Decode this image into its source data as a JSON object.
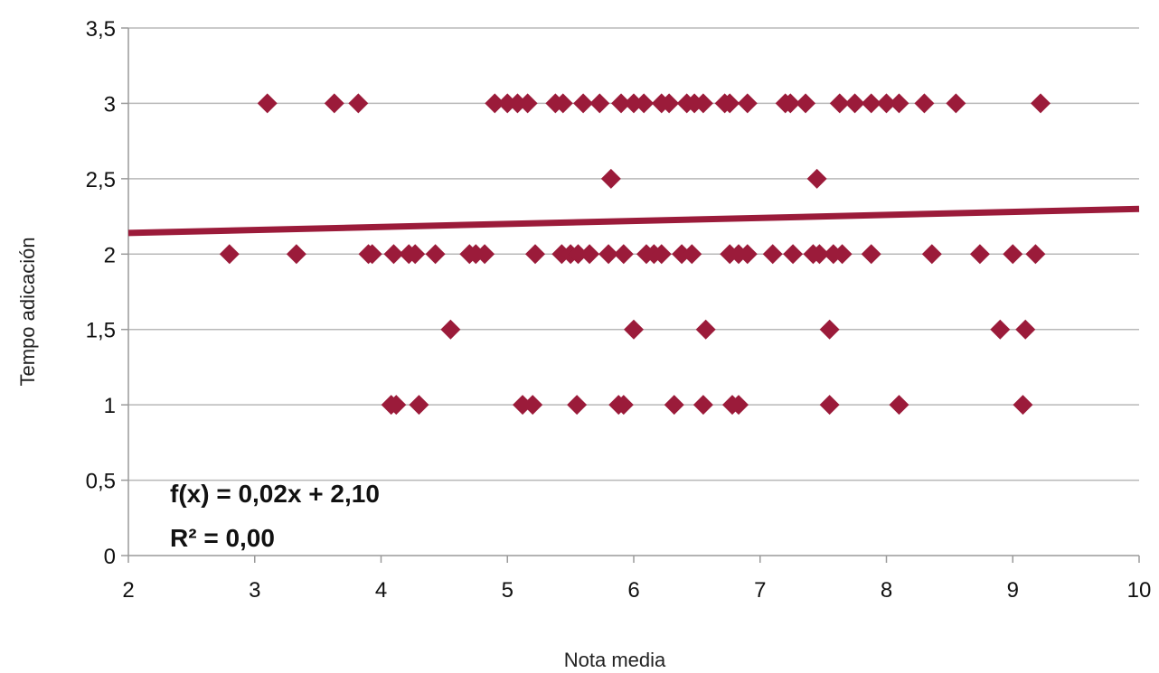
{
  "chart_data": {
    "type": "scatter",
    "xlabel": "Nota media",
    "ylabel": "Tempo adicación",
    "xlim": [
      2,
      10
    ],
    "ylim": [
      0,
      3.5
    ],
    "x_ticks": [
      "2",
      "3",
      "4",
      "5",
      "6",
      "7",
      "8",
      "9",
      "10"
    ],
    "y_ticks": [
      "0",
      "0,5",
      "1",
      "1,5",
      "2",
      "2,5",
      "3",
      "3,5"
    ],
    "grid": "horizontal",
    "marker": "diamond",
    "color": "#9b1b3a",
    "points": [
      {
        "x": 3.1,
        "y": 3
      },
      {
        "x": 3.63,
        "y": 3
      },
      {
        "x": 3.82,
        "y": 3
      },
      {
        "x": 4.9,
        "y": 3
      },
      {
        "x": 5.0,
        "y": 3
      },
      {
        "x": 5.08,
        "y": 3
      },
      {
        "x": 5.16,
        "y": 3
      },
      {
        "x": 5.38,
        "y": 3
      },
      {
        "x": 5.44,
        "y": 3
      },
      {
        "x": 5.6,
        "y": 3
      },
      {
        "x": 5.73,
        "y": 3
      },
      {
        "x": 5.9,
        "y": 3
      },
      {
        "x": 6.0,
        "y": 3
      },
      {
        "x": 6.08,
        "y": 3
      },
      {
        "x": 6.22,
        "y": 3
      },
      {
        "x": 6.28,
        "y": 3
      },
      {
        "x": 6.42,
        "y": 3
      },
      {
        "x": 6.48,
        "y": 3
      },
      {
        "x": 6.55,
        "y": 3
      },
      {
        "x": 6.72,
        "y": 3
      },
      {
        "x": 6.76,
        "y": 3
      },
      {
        "x": 6.9,
        "y": 3
      },
      {
        "x": 7.2,
        "y": 3
      },
      {
        "x": 7.24,
        "y": 3
      },
      {
        "x": 7.36,
        "y": 3
      },
      {
        "x": 7.63,
        "y": 3
      },
      {
        "x": 7.75,
        "y": 3
      },
      {
        "x": 7.88,
        "y": 3
      },
      {
        "x": 8.0,
        "y": 3
      },
      {
        "x": 8.1,
        "y": 3
      },
      {
        "x": 8.3,
        "y": 3
      },
      {
        "x": 8.55,
        "y": 3
      },
      {
        "x": 9.22,
        "y": 3
      },
      {
        "x": 5.82,
        "y": 2.5
      },
      {
        "x": 7.45,
        "y": 2.5
      },
      {
        "x": 2.8,
        "y": 2
      },
      {
        "x": 3.33,
        "y": 2
      },
      {
        "x": 3.9,
        "y": 2
      },
      {
        "x": 3.93,
        "y": 2
      },
      {
        "x": 4.1,
        "y": 2
      },
      {
        "x": 4.22,
        "y": 2
      },
      {
        "x": 4.27,
        "y": 2
      },
      {
        "x": 4.43,
        "y": 2
      },
      {
        "x": 4.7,
        "y": 2
      },
      {
        "x": 4.75,
        "y": 2
      },
      {
        "x": 4.82,
        "y": 2
      },
      {
        "x": 5.22,
        "y": 2
      },
      {
        "x": 5.43,
        "y": 2
      },
      {
        "x": 5.5,
        "y": 2
      },
      {
        "x": 5.56,
        "y": 2
      },
      {
        "x": 5.65,
        "y": 2
      },
      {
        "x": 5.8,
        "y": 2
      },
      {
        "x": 5.92,
        "y": 2
      },
      {
        "x": 6.1,
        "y": 2
      },
      {
        "x": 6.16,
        "y": 2
      },
      {
        "x": 6.22,
        "y": 2
      },
      {
        "x": 6.38,
        "y": 2
      },
      {
        "x": 6.46,
        "y": 2
      },
      {
        "x": 6.76,
        "y": 2
      },
      {
        "x": 6.83,
        "y": 2
      },
      {
        "x": 6.9,
        "y": 2
      },
      {
        "x": 7.1,
        "y": 2
      },
      {
        "x": 7.26,
        "y": 2
      },
      {
        "x": 7.42,
        "y": 2
      },
      {
        "x": 7.47,
        "y": 2
      },
      {
        "x": 7.58,
        "y": 2
      },
      {
        "x": 7.65,
        "y": 2
      },
      {
        "x": 7.88,
        "y": 2
      },
      {
        "x": 8.36,
        "y": 2
      },
      {
        "x": 8.74,
        "y": 2
      },
      {
        "x": 9.0,
        "y": 2
      },
      {
        "x": 9.18,
        "y": 2
      },
      {
        "x": 4.55,
        "y": 1.5
      },
      {
        "x": 6.0,
        "y": 1.5
      },
      {
        "x": 6.57,
        "y": 1.5
      },
      {
        "x": 7.55,
        "y": 1.5
      },
      {
        "x": 8.9,
        "y": 1.5
      },
      {
        "x": 9.1,
        "y": 1.5
      },
      {
        "x": 4.08,
        "y": 1
      },
      {
        "x": 4.12,
        "y": 1
      },
      {
        "x": 4.3,
        "y": 1
      },
      {
        "x": 5.12,
        "y": 1
      },
      {
        "x": 5.2,
        "y": 1
      },
      {
        "x": 5.55,
        "y": 1
      },
      {
        "x": 5.88,
        "y": 1
      },
      {
        "x": 5.92,
        "y": 1
      },
      {
        "x": 6.32,
        "y": 1
      },
      {
        "x": 6.55,
        "y": 1
      },
      {
        "x": 6.78,
        "y": 1
      },
      {
        "x": 6.83,
        "y": 1
      },
      {
        "x": 7.55,
        "y": 1
      },
      {
        "x": 8.1,
        "y": 1
      },
      {
        "x": 9.08,
        "y": 1
      }
    ],
    "trendline": {
      "slope": 0.02,
      "intercept": 2.1,
      "equation": "f(x) = 0,02x + 2,10",
      "r2": "R² = 0,00"
    }
  }
}
